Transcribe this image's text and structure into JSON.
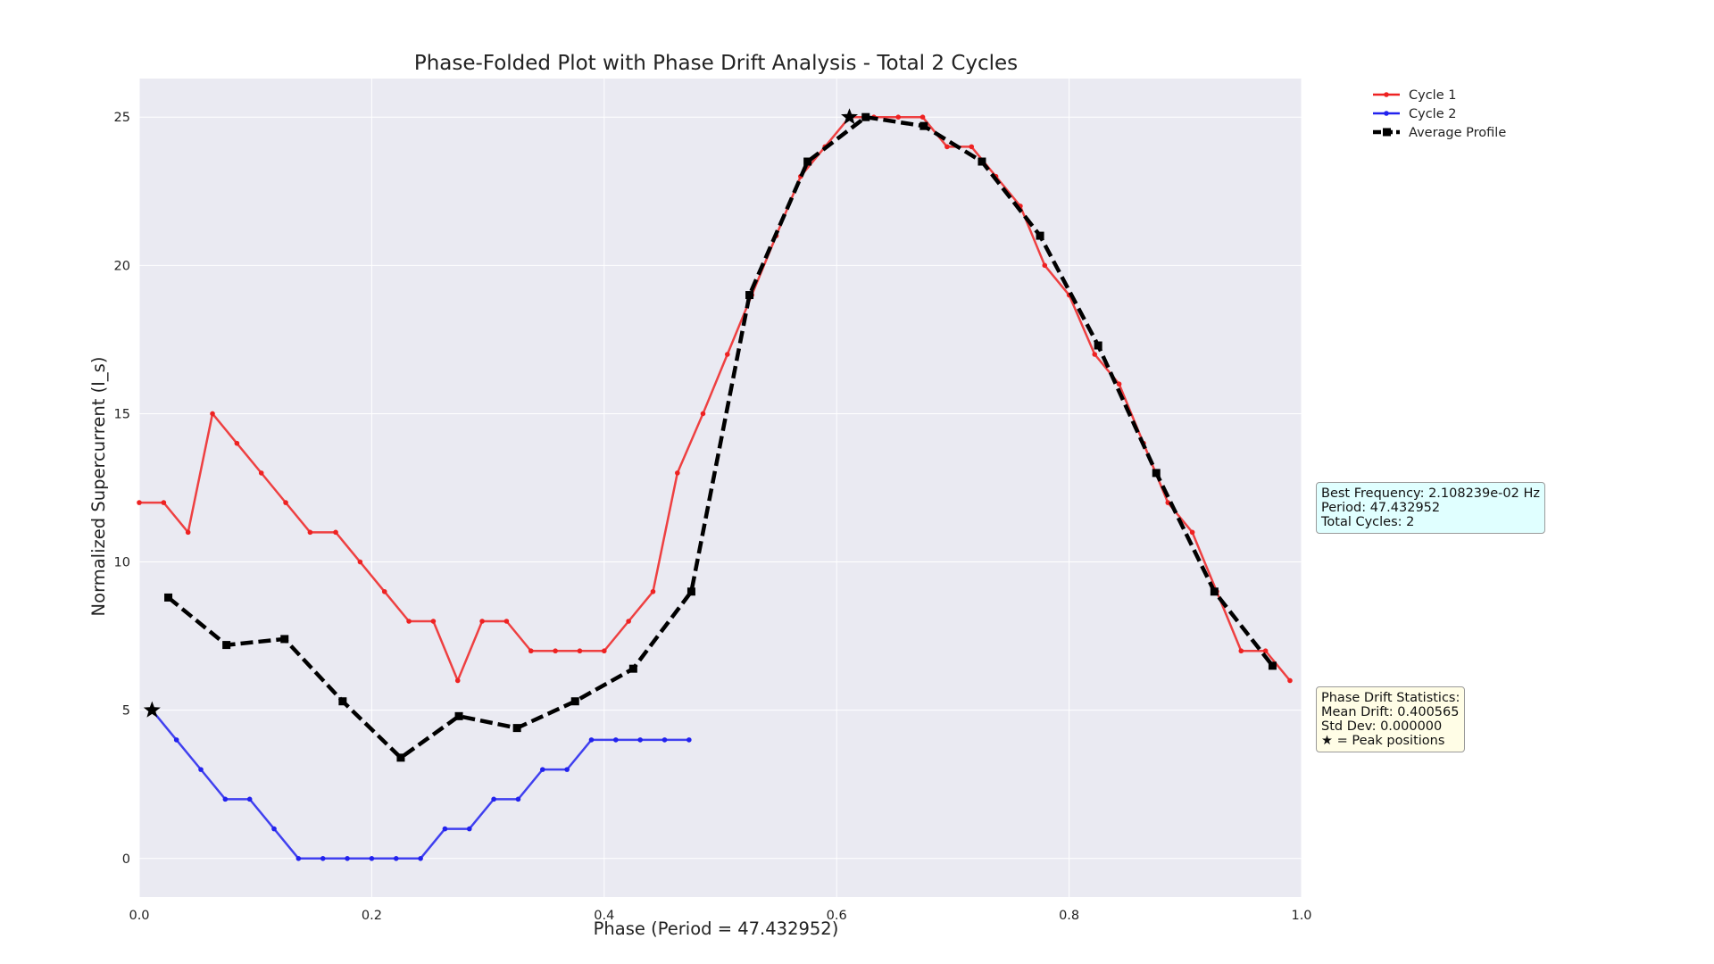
{
  "chart_data": {
    "type": "line",
    "title": "Phase-Folded Plot with Phase Drift Analysis - Total 2 Cycles",
    "xlabel": "Phase (Period = 47.432952)",
    "ylabel": "Normalized Supercurrent (I_s)",
    "xlim": [
      0.0,
      1.0
    ],
    "ylim": [
      -1.3,
      26.3
    ],
    "xticks": [
      "0.0",
      "0.2",
      "0.4",
      "0.6",
      "0.8",
      "1.0"
    ],
    "yticks": [
      "0",
      "5",
      "10",
      "15",
      "20",
      "25"
    ],
    "grid": true,
    "legend_position": "upper-right-outside",
    "series": [
      {
        "name": "Cycle 1",
        "color": "#ee2222",
        "x": [
          0.0,
          0.021,
          0.042,
          0.063,
          0.084,
          0.105,
          0.126,
          0.147,
          0.169,
          0.19,
          0.211,
          0.232,
          0.253,
          0.274,
          0.295,
          0.316,
          0.337,
          0.358,
          0.379,
          0.4,
          0.421,
          0.442,
          0.463,
          0.485,
          0.506,
          0.527,
          0.548,
          0.569,
          0.59,
          0.611,
          0.632,
          0.653,
          0.674,
          0.695,
          0.716,
          0.737,
          0.758,
          0.779,
          0.8,
          0.822,
          0.843,
          0.864,
          0.885,
          0.906,
          0.927,
          0.948,
          0.969,
          0.99
        ],
        "values": [
          12,
          12,
          11,
          15,
          14,
          13,
          12,
          11,
          11,
          10,
          9,
          8,
          8,
          6,
          8,
          8,
          7,
          7,
          7,
          7,
          8,
          9,
          13,
          15,
          17,
          19,
          21,
          23,
          24,
          25,
          25,
          25,
          25,
          24,
          24,
          23,
          22,
          20,
          19,
          17,
          16,
          14,
          12,
          11,
          9,
          7,
          7,
          6
        ]
      },
      {
        "name": "Cycle 2",
        "color": "#2222ee",
        "x": [
          0.011,
          0.032,
          0.053,
          0.074,
          0.095,
          0.116,
          0.137,
          0.158,
          0.179,
          0.2,
          0.221,
          0.242,
          0.263,
          0.284,
          0.305,
          0.326,
          0.347,
          0.368,
          0.389,
          0.41,
          0.431,
          0.452,
          0.473
        ],
        "values": [
          5,
          4,
          3,
          2,
          2,
          1,
          0,
          0,
          0,
          0,
          0,
          0,
          1,
          1,
          2,
          2,
          3,
          3,
          4,
          4,
          4,
          4,
          4
        ]
      },
      {
        "name": "Average Profile",
        "color": "#000000",
        "dashed": true,
        "x": [
          0.025,
          0.075,
          0.125,
          0.175,
          0.225,
          0.275,
          0.325,
          0.375,
          0.425,
          0.475,
          0.525,
          0.575,
          0.625,
          0.675,
          0.725,
          0.775,
          0.825,
          0.875,
          0.925,
          0.975
        ],
        "values": [
          8.8,
          7.2,
          7.4,
          5.3,
          3.4,
          4.8,
          4.4,
          5.3,
          6.4,
          9.0,
          19.0,
          23.5,
          25.0,
          24.7,
          23.5,
          21.0,
          17.3,
          13.0,
          9.0,
          6.5
        ]
      }
    ],
    "peak_markers": [
      {
        "series": "Cycle 1",
        "x": 0.611,
        "y": 25
      },
      {
        "series": "Cycle 2",
        "x": 0.011,
        "y": 5
      }
    ]
  },
  "frequency_box": {
    "lines": [
      "Best Frequency: 2.108239e-02 Hz",
      "Period: 47.432952",
      "Total Cycles: 2"
    ],
    "background": "#e0ffff"
  },
  "drift_box": {
    "lines": [
      "Phase Drift Statistics:",
      "Mean Drift: 0.400565",
      "Std Dev: 0.000000",
      "★ = Peak positions"
    ],
    "background": "#fffde6"
  },
  "colors": {
    "plot_background": "#eaeaf2",
    "grid": "#ffffff"
  }
}
